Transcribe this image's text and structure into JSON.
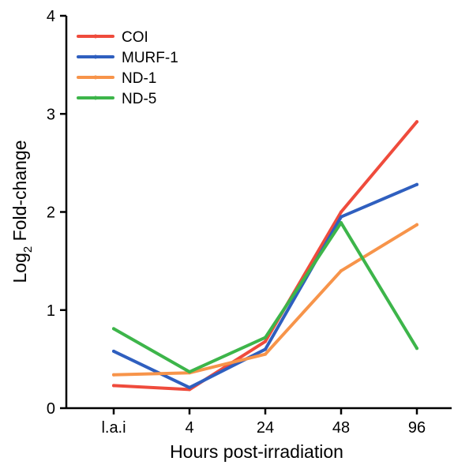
{
  "chart_data": {
    "type": "line",
    "title": "",
    "xlabel": "Hours post-irradiation",
    "ylabel_main": "Log",
    "ylabel_sub": "2",
    "ylabel_rest": " Fold-change",
    "categories": [
      "l.a.i",
      "4",
      "24",
      "48",
      "96"
    ],
    "ylim": [
      0,
      4
    ],
    "yticks": [
      "0",
      "1",
      "2",
      "3",
      "4"
    ],
    "grid": false,
    "legend_position": "top-left",
    "series": [
      {
        "name": "COI",
        "color": "#ef4b3c",
        "values": [
          0.23,
          0.19,
          0.68,
          2.0,
          2.92
        ]
      },
      {
        "name": "MURF-1",
        "color": "#2f5fbf",
        "values": [
          0.58,
          0.21,
          0.6,
          1.95,
          2.28
        ]
      },
      {
        "name": "ND-1",
        "color": "#f7944a",
        "values": [
          0.34,
          0.36,
          0.55,
          1.4,
          1.87
        ]
      },
      {
        "name": "ND-5",
        "color": "#3db54a",
        "values": [
          0.81,
          0.37,
          0.72,
          1.89,
          0.61
        ]
      }
    ]
  }
}
